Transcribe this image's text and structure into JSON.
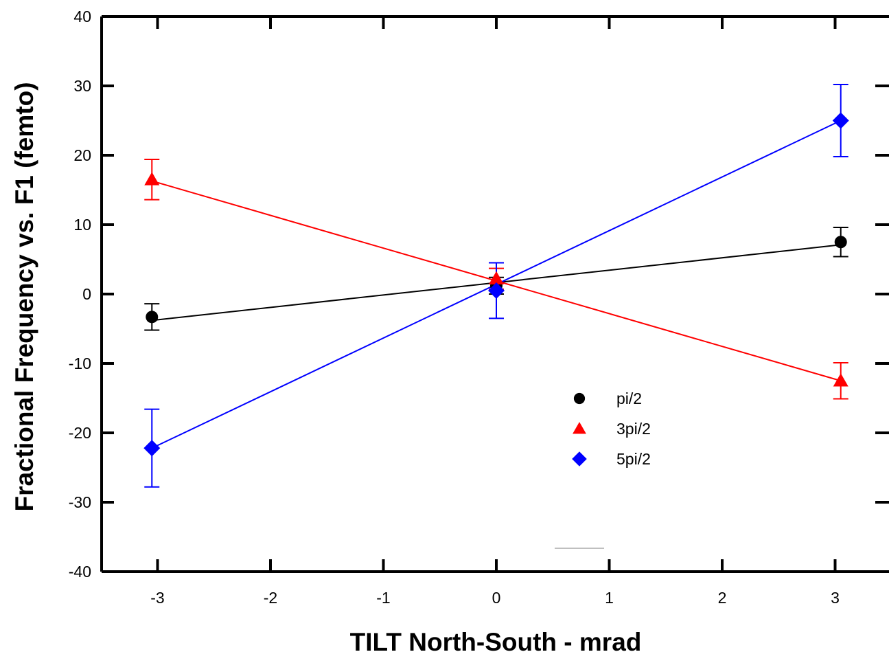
{
  "chart_data": {
    "type": "scatter",
    "title": "",
    "xlabel": "TILT North-South - mrad",
    "ylabel": "Fractional Frequency vs. F1 (femto)",
    "xlim": [
      -3.5,
      3.5
    ],
    "ylim": [
      -40,
      40
    ],
    "xticks": [
      -3,
      -2,
      -1,
      0,
      1,
      2,
      3
    ],
    "yticks": [
      -40,
      -30,
      -20,
      -10,
      0,
      10,
      20,
      30,
      40
    ],
    "grid": false,
    "legend_position": "lower-right-center",
    "series": [
      {
        "name": "pi/2",
        "color": "#000000",
        "marker": "circle",
        "x": [
          -3.05,
          0,
          3.05
        ],
        "y": [
          -3.3,
          1.2,
          7.5
        ],
        "yerr": [
          1.9,
          1.2,
          2.1
        ],
        "fit_line": {
          "x": [
            -3.05,
            3.05
          ],
          "y": [
            -3.8,
            7.1
          ]
        }
      },
      {
        "name": "3pi/2",
        "color": "#ff0000",
        "marker": "triangle",
        "x": [
          -3.05,
          0,
          3.05
        ],
        "y": [
          16.5,
          2.2,
          -12.5
        ],
        "yerr": [
          2.9,
          1.5,
          2.6
        ],
        "fit_line": {
          "x": [
            -3.05,
            3.05
          ],
          "y": [
            16.3,
            -12.5
          ]
        }
      },
      {
        "name": "5pi/2",
        "color": "#0000ff",
        "marker": "diamond",
        "x": [
          -3.05,
          0,
          3.05
        ],
        "y": [
          -22.2,
          0.5,
          25.0
        ],
        "yerr": [
          5.6,
          4.0,
          5.2
        ],
        "fit_line": {
          "x": [
            -3.05,
            3.05
          ],
          "y": [
            -22.2,
            25.0
          ]
        }
      }
    ]
  }
}
